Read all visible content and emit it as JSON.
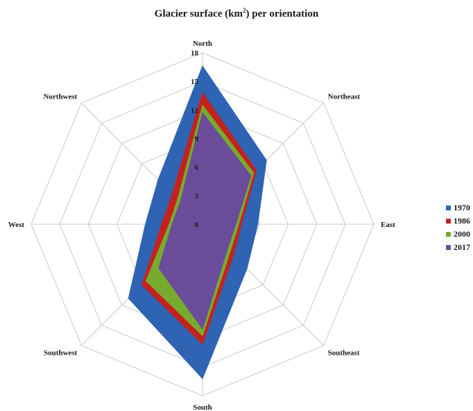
{
  "chart_data": {
    "type": "radar",
    "title": {
      "pre": "Glacier surface (km",
      "sup": "2",
      "post": ") per orientation"
    },
    "axes": [
      "North",
      "Northeast",
      "East",
      "Southeast",
      "South",
      "Southwest",
      "West",
      "Northwest"
    ],
    "rlim": [
      0,
      18
    ],
    "ticks": [
      "0",
      "3",
      "6",
      "9",
      "12",
      "15",
      "18"
    ],
    "grid": true,
    "legend_position": "right",
    "series": [
      {
        "name": "1970",
        "color": "#2f63b4",
        "values": [
          16.6,
          9.5,
          5.8,
          6.6,
          16.2,
          11.0,
          6.0,
          6.6
        ]
      },
      {
        "name": "1986",
        "color": "#c4221f",
        "values": [
          13.8,
          8.0,
          4.1,
          4.6,
          12.6,
          9.0,
          4.3,
          4.5
        ]
      },
      {
        "name": "2000",
        "color": "#77ab2e",
        "values": [
          12.5,
          7.6,
          3.8,
          4.1,
          11.7,
          8.4,
          3.5,
          3.7
        ]
      },
      {
        "name": "2017",
        "color": "#6b4c9a",
        "values": [
          11.7,
          7.2,
          3.5,
          3.7,
          11.0,
          6.5,
          3.2,
          3.3
        ]
      }
    ]
  }
}
